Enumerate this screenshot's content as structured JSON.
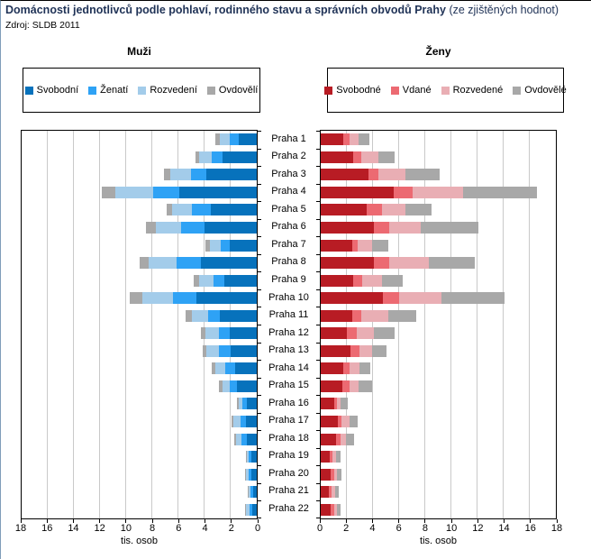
{
  "title": {
    "main": "Domácnosti jednotlivců podle pohlaví, rodinného stavu a správních obvodů Prahy",
    "note": " (ze zjištěných hodnot)"
  },
  "source": "Zdroj: SLDB 2011",
  "colors": {
    "title_text": "#1F3256",
    "grid": "#C9C9C9",
    "axis": "#000000",
    "men": [
      "#0772BC",
      "#2EA2F5",
      "#A3CCEA",
      "#A8A8A8"
    ],
    "women": [
      "#B81C24",
      "#EC6A72",
      "#E9AEB4",
      "#A8A8A8"
    ]
  },
  "chart_data": [
    {
      "type": "bar",
      "orientation": "horizontal-stacked",
      "side": "left",
      "title": "Muži",
      "xlabel": "tis. osob",
      "xlim": [
        0,
        18
      ],
      "ticks": [
        18,
        16,
        14,
        12,
        10,
        8,
        6,
        4,
        2,
        0
      ],
      "grid": true,
      "legend_position": "top",
      "categories": [
        "Praha 1",
        "Praha 2",
        "Praha 3",
        "Praha 4",
        "Praha 5",
        "Praha 6",
        "Praha 7",
        "Praha 8",
        "Praha 9",
        "Praha 10",
        "Praha 11",
        "Praha 12",
        "Praha 13",
        "Praha 14",
        "Praha 15",
        "Praha 16",
        "Praha 17",
        "Praha 18",
        "Praha 19",
        "Praha 20",
        "Praha 21",
        "Praha 22"
      ],
      "series_colors": [
        "#0772BC",
        "#2EA2F5",
        "#A3CCEA",
        "#A8A8A8"
      ],
      "series": [
        {
          "name": "Svobodní",
          "values": [
            1.4,
            2.6,
            3.85,
            5.9,
            3.5,
            4.0,
            2.05,
            4.3,
            2.5,
            4.65,
            2.85,
            2.05,
            2.0,
            1.65,
            1.5,
            0.75,
            0.8,
            0.75,
            0.4,
            0.4,
            0.3,
            0.35
          ]
        },
        {
          "name": "Ženatí",
          "values": [
            0.7,
            0.85,
            1.2,
            2.0,
            1.45,
            1.8,
            0.7,
            1.85,
            0.8,
            1.75,
            0.85,
            0.85,
            0.9,
            0.75,
            0.55,
            0.35,
            0.45,
            0.45,
            0.2,
            0.2,
            0.15,
            0.2
          ]
        },
        {
          "name": "Rozvedení",
          "values": [
            0.7,
            0.95,
            1.6,
            2.95,
            1.55,
            1.9,
            0.85,
            2.15,
            1.1,
            2.35,
            1.3,
            1.05,
            0.95,
            0.8,
            0.6,
            0.25,
            0.55,
            0.4,
            0.15,
            0.25,
            0.2,
            0.25
          ]
        },
        {
          "name": "Ovdovělí",
          "values": [
            0.35,
            0.3,
            0.45,
            1.0,
            0.4,
            0.8,
            0.35,
            0.7,
            0.45,
            1.0,
            0.45,
            0.35,
            0.3,
            0.25,
            0.25,
            0.2,
            0.15,
            0.15,
            0.05,
            0.05,
            0.05,
            0.1
          ]
        }
      ]
    },
    {
      "type": "bar",
      "orientation": "horizontal-stacked",
      "side": "right",
      "title": "Ženy",
      "xlabel": "tis. osob",
      "xlim": [
        0,
        18
      ],
      "ticks": [
        0,
        2,
        4,
        6,
        8,
        10,
        12,
        14,
        16,
        18
      ],
      "grid": true,
      "legend_position": "top",
      "categories": [
        "Praha 1",
        "Praha 2",
        "Praha 3",
        "Praha 4",
        "Praha 5",
        "Praha 6",
        "Praha 7",
        "Praha 8",
        "Praha 9",
        "Praha 10",
        "Praha 11",
        "Praha 12",
        "Praha 13",
        "Praha 14",
        "Praha 15",
        "Praha 16",
        "Praha 17",
        "Praha 18",
        "Praha 19",
        "Praha 20",
        "Praha 21",
        "Praha 22"
      ],
      "series_colors": [
        "#B81C24",
        "#EC6A72",
        "#E9AEB4",
        "#A8A8A8"
      ],
      "series": [
        {
          "name": "Svobodné",
          "values": [
            1.75,
            2.5,
            3.65,
            5.6,
            3.55,
            4.1,
            2.4,
            4.1,
            2.5,
            4.75,
            2.4,
            2.0,
            2.3,
            1.75,
            1.65,
            1.0,
            1.3,
            1.15,
            0.7,
            0.75,
            0.6,
            0.75
          ]
        },
        {
          "name": "Vdané",
          "values": [
            0.45,
            0.6,
            0.75,
            1.45,
            1.15,
            1.15,
            0.4,
            1.15,
            0.65,
            1.25,
            0.7,
            0.75,
            0.65,
            0.45,
            0.55,
            0.25,
            0.3,
            0.35,
            0.2,
            0.25,
            0.25,
            0.25
          ]
        },
        {
          "name": "Rozvedené",
          "values": [
            0.7,
            1.3,
            2.1,
            3.85,
            1.75,
            2.4,
            1.1,
            3.0,
            1.55,
            3.25,
            2.1,
            1.3,
            0.95,
            0.75,
            0.7,
            0.3,
            0.6,
            0.45,
            0.25,
            0.25,
            0.25,
            0.25
          ]
        },
        {
          "name": "Ovdovělé",
          "values": [
            0.8,
            1.25,
            2.6,
            5.65,
            2.05,
            4.4,
            1.3,
            3.55,
            1.6,
            4.8,
            2.1,
            1.6,
            1.15,
            0.85,
            1.05,
            0.55,
            0.6,
            0.6,
            0.35,
            0.35,
            0.3,
            0.3
          ]
        }
      ]
    }
  ]
}
